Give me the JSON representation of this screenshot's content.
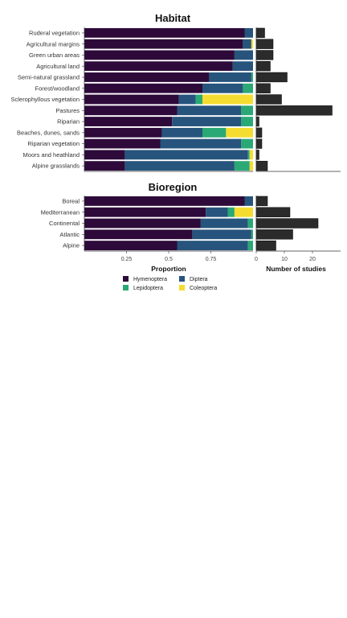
{
  "colors": {
    "Hymenoptera": "#2d0a3a",
    "Diptera": "#26547c",
    "Lepidoptera": "#2aa876",
    "Coleoptera": "#f5dc30",
    "count_bar": "#2b2b2b"
  },
  "chart_data": [
    {
      "type": "bar",
      "orientation": "horizontal",
      "stacked": true,
      "title": "Habitat",
      "categories": [
        "Ruderal vegetation",
        "Agricultural margins",
        "Green urban areas",
        "Agricultural land",
        "Semi-natural grassland",
        "Forest/woodland",
        "Sclerophyllous vegetation",
        "Pastures",
        "Riparian",
        "Beaches, dunes, sands",
        "Riparian vegetation",
        "Moors and heathland",
        "Alpine grasslands"
      ],
      "series": [
        {
          "name": "Hymenoptera",
          "values": [
            0.95,
            0.94,
            0.89,
            0.88,
            0.74,
            0.7,
            0.56,
            0.55,
            0.52,
            0.46,
            0.45,
            0.24,
            0.24
          ]
        },
        {
          "name": "Diptera",
          "values": [
            0.05,
            0.05,
            0.11,
            0.12,
            0.25,
            0.24,
            0.1,
            0.38,
            0.41,
            0.24,
            0.48,
            0.73,
            0.65
          ]
        },
        {
          "name": "Lepidoptera",
          "values": [
            0,
            0,
            0,
            0,
            0.01,
            0.06,
            0.04,
            0.07,
            0.07,
            0.14,
            0.07,
            0.01,
            0.09
          ]
        },
        {
          "name": "Coleoptera",
          "values": [
            0,
            0.01,
            0,
            0,
            0,
            0,
            0.3,
            0,
            0,
            0.16,
            0,
            0.02,
            0.02
          ]
        }
      ],
      "studies": [
        3,
        6,
        6,
        5,
        11,
        5,
        9,
        27,
        1,
        2,
        2,
        1,
        4
      ],
      "xlabel": "Proportion",
      "xticks": [
        "0.25",
        "0.5",
        "0.75"
      ],
      "xlim": [
        0,
        1
      ],
      "count_xlabel": "Number of studies",
      "count_xticks": [
        "0",
        "10",
        "20"
      ],
      "count_xlim": [
        0,
        30
      ]
    },
    {
      "type": "bar",
      "orientation": "horizontal",
      "stacked": true,
      "title": "Bioregion",
      "categories": [
        "Boreal",
        "Mediterranean",
        "Continental",
        "Atlantic",
        "Alpine"
      ],
      "series": [
        {
          "name": "Hymenoptera",
          "values": [
            0.95,
            0.72,
            0.69,
            0.64,
            0.55
          ]
        },
        {
          "name": "Diptera",
          "values": [
            0.05,
            0.13,
            0.28,
            0.35,
            0.42
          ]
        },
        {
          "name": "Lepidoptera",
          "values": [
            0,
            0.04,
            0.03,
            0.01,
            0.03
          ]
        },
        {
          "name": "Coleoptera",
          "values": [
            0,
            0.11,
            0,
            0,
            0
          ]
        }
      ],
      "studies": [
        4,
        12,
        22,
        13,
        7
      ],
      "xlabel": "Proportion",
      "xticks": [
        "0.25",
        "0.5",
        "0.75"
      ],
      "xlim": [
        0,
        1
      ],
      "count_xlabel": "Number of studies",
      "count_xticks": [
        "0",
        "10",
        "20"
      ],
      "count_xlim": [
        0,
        30
      ]
    }
  ],
  "legend": {
    "items": [
      "Hymenoptera",
      "Diptera",
      "Lepidoptera",
      "Coleoptera"
    ],
    "placement": "bottom"
  }
}
